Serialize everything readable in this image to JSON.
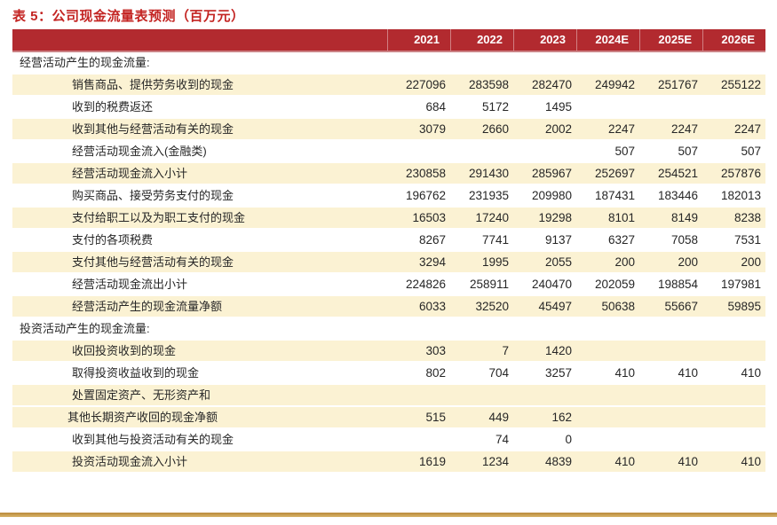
{
  "title": "表 5：公司现金流量表预测（百万元）",
  "colors": {
    "title_color": "#c32422",
    "header_bg": "#b22a2f",
    "header_divider": "#cb8184",
    "stripe_bg": "#fbf2d3",
    "text_color": "#262626",
    "gold_top": "#b98a3c",
    "gold_bottom": "#d7b46c"
  },
  "table": {
    "header": {
      "label": "",
      "years": [
        "2021",
        "2022",
        "2023",
        "2024E",
        "2025E",
        "2026E"
      ]
    },
    "rows": [
      {
        "label": "经营活动产生的现金流量:",
        "indent": 0,
        "shaded": false,
        "values": [
          "",
          "",
          "",
          "",
          "",
          ""
        ]
      },
      {
        "label": "销售商品、提供劳务收到的现金",
        "indent": 1,
        "shaded": true,
        "values": [
          "227096",
          "283598",
          "282470",
          "249942",
          "251767",
          "255122"
        ]
      },
      {
        "label": "收到的税费返还",
        "indent": 1,
        "shaded": false,
        "values": [
          "684",
          "5172",
          "1495",
          "",
          "",
          ""
        ]
      },
      {
        "label": "收到其他与经营活动有关的现金",
        "indent": 1,
        "shaded": true,
        "values": [
          "3079",
          "2660",
          "2002",
          "2247",
          "2247",
          "2247"
        ]
      },
      {
        "label": "经营活动现金流入(金融类)",
        "indent": 1,
        "shaded": false,
        "values": [
          "",
          "",
          "",
          "507",
          "507",
          "507"
        ]
      },
      {
        "label": "经营活动现金流入小计",
        "indent": 1,
        "shaded": true,
        "values": [
          "230858",
          "291430",
          "285967",
          "252697",
          "254521",
          "257876"
        ]
      },
      {
        "label": "购买商品、接受劳务支付的现金",
        "indent": 1,
        "shaded": false,
        "values": [
          "196762",
          "231935",
          "209980",
          "187431",
          "183446",
          "182013"
        ]
      },
      {
        "label": "支付给职工以及为职工支付的现金",
        "indent": 1,
        "shaded": true,
        "values": [
          "16503",
          "17240",
          "19298",
          "8101",
          "8149",
          "8238"
        ]
      },
      {
        "label": "支付的各项税费",
        "indent": 1,
        "shaded": false,
        "values": [
          "8267",
          "7741",
          "9137",
          "6327",
          "7058",
          "7531"
        ]
      },
      {
        "label": "支付其他与经营活动有关的现金",
        "indent": 1,
        "shaded": true,
        "values": [
          "3294",
          "1995",
          "2055",
          "200",
          "200",
          "200"
        ]
      },
      {
        "label": "经营活动现金流出小计",
        "indent": 1,
        "shaded": false,
        "values": [
          "224826",
          "258911",
          "240470",
          "202059",
          "198854",
          "197981"
        ]
      },
      {
        "label": "经营活动产生的现金流量净额",
        "indent": 1,
        "shaded": true,
        "values": [
          "6033",
          "32520",
          "45497",
          "50638",
          "55667",
          "59895"
        ]
      },
      {
        "label": "投资活动产生的现金流量:",
        "indent": 0,
        "shaded": false,
        "values": [
          "",
          "",
          "",
          "",
          "",
          ""
        ]
      },
      {
        "label": "收回投资收到的现金",
        "indent": 1,
        "shaded": true,
        "values": [
          "303",
          "7",
          "1420",
          "",
          "",
          ""
        ]
      },
      {
        "label": "取得投资收益收到的现金",
        "indent": 1,
        "shaded": false,
        "values": [
          "802",
          "704",
          "3257",
          "410",
          "410",
          "410"
        ]
      },
      {
        "label": "处置固定资产、无形资产和",
        "indent": 1,
        "shaded": true,
        "values": [
          "",
          "",
          "",
          "",
          "",
          ""
        ]
      },
      {
        "label": "其他长期资产收回的现金净额",
        "indent": 2,
        "shaded": true,
        "values": [
          "515",
          "449",
          "162",
          "",
          "",
          ""
        ]
      },
      {
        "label": "收到其他与投资活动有关的现金",
        "indent": 1,
        "shaded": false,
        "values": [
          "",
          "74",
          "0",
          "",
          "",
          ""
        ]
      },
      {
        "label": "投资活动现金流入小计",
        "indent": 1,
        "shaded": true,
        "values": [
          "1619",
          "1234",
          "4839",
          "410",
          "410",
          "410"
        ]
      }
    ]
  }
}
